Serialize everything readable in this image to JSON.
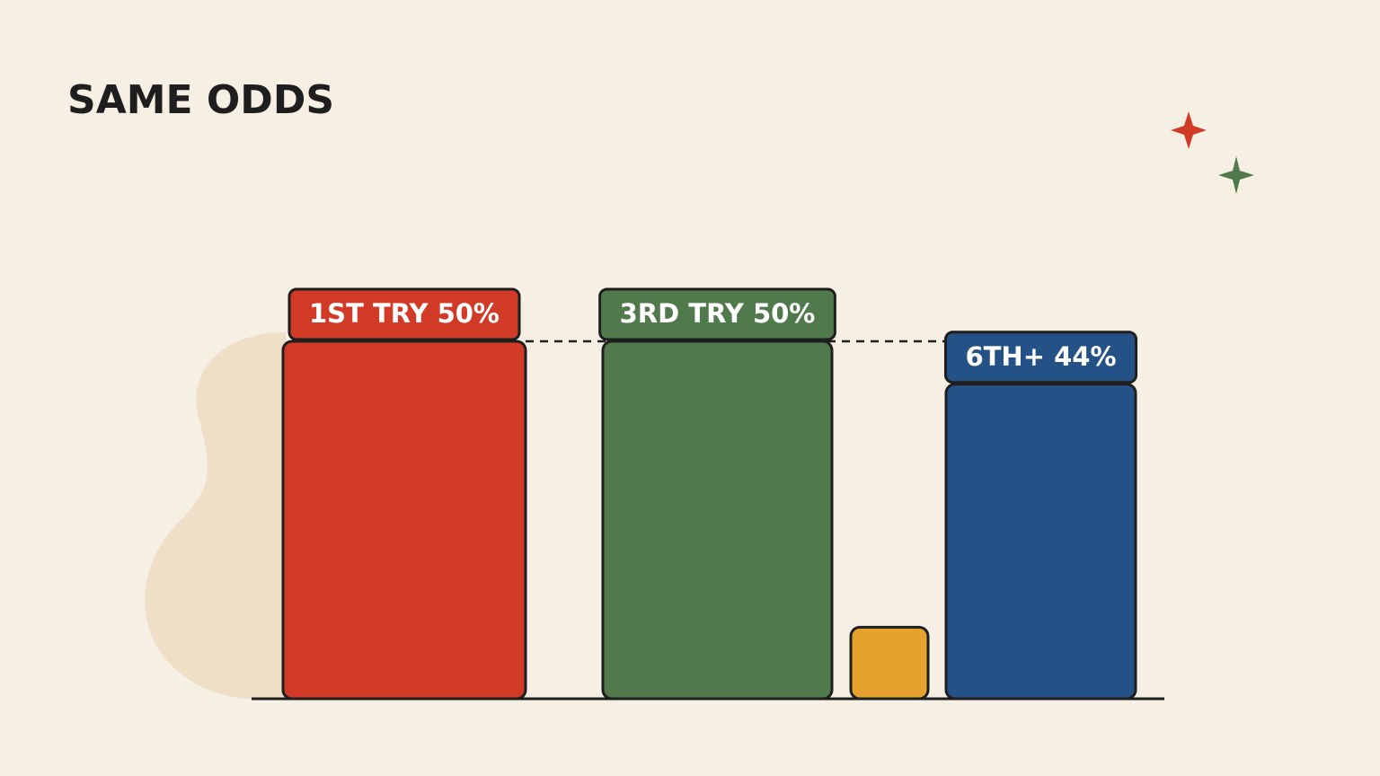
{
  "chart_data": {
    "type": "bar",
    "title": "SAME ODDS",
    "categories": [
      "1ST TRY",
      "3RD TRY",
      null,
      "6TH+"
    ],
    "values": [
      50,
      50,
      10,
      44
    ],
    "value_labels": [
      "50%",
      "50%",
      null,
      "44%"
    ],
    "colors": [
      "#d23a28",
      "#517a4c",
      "#e5a32e",
      "#245186"
    ]
  }
}
